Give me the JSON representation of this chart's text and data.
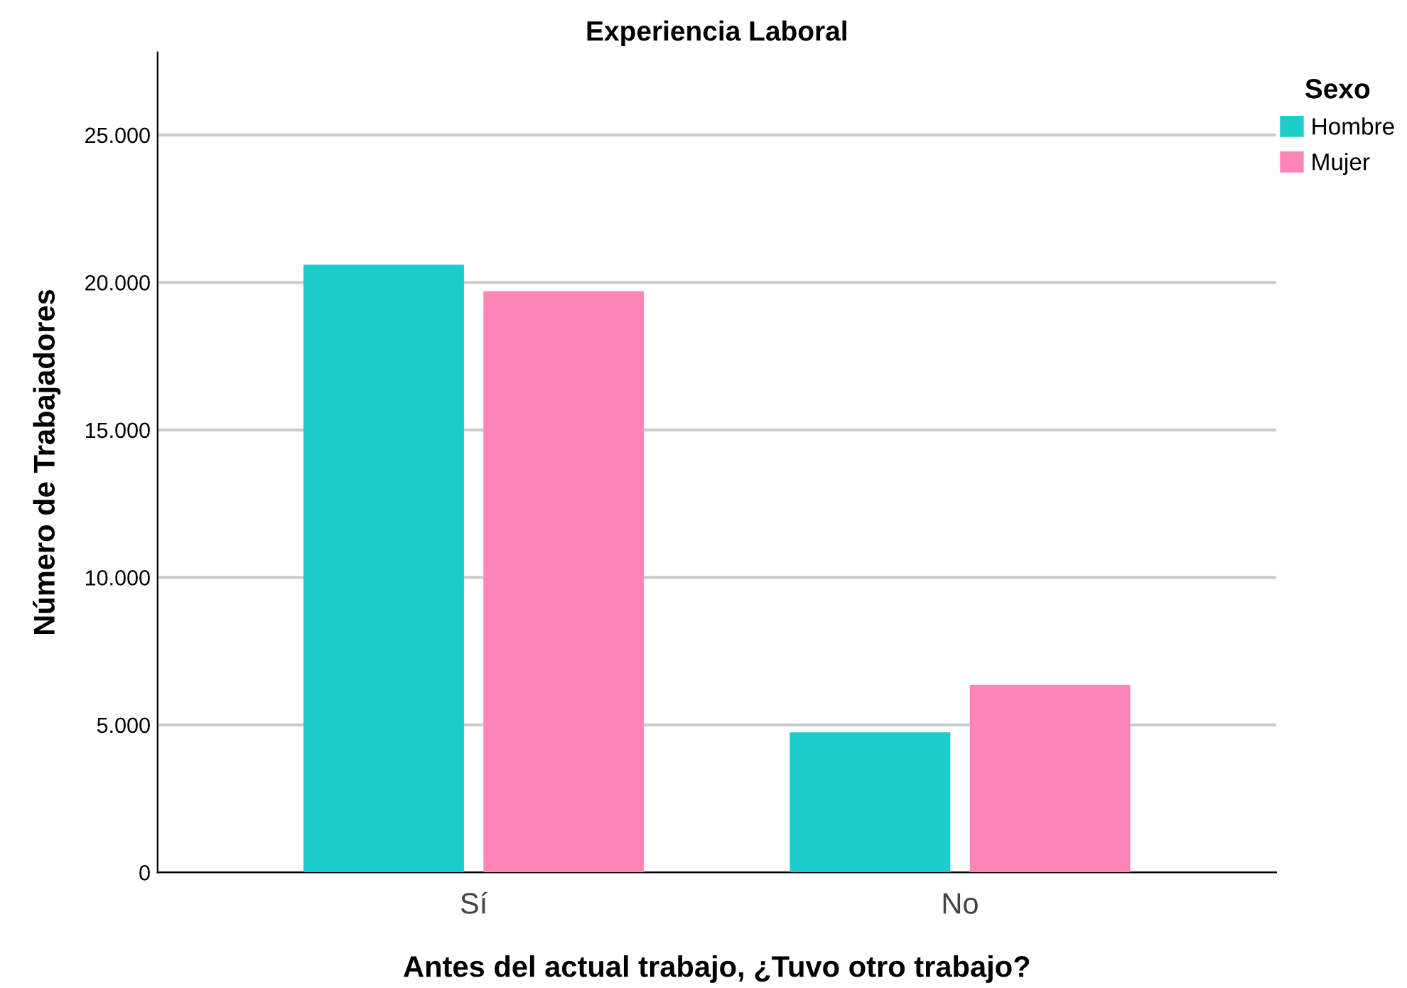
{
  "chart_data": {
    "type": "bar",
    "title": "Experiencia Laboral",
    "xlabel": "Antes del actual trabajo, ¿Tuvo otro trabajo?",
    "ylabel": "Número de Trabajadores",
    "legend_title": "Sexo",
    "categories": [
      "Sí",
      "No"
    ],
    "series": [
      {
        "name": "Hombre",
        "color": "#1ccdcc",
        "values": [
          20600,
          4750
        ]
      },
      {
        "name": "Mujer",
        "color": "#ff84b8",
        "values": [
          19700,
          6350
        ]
      }
    ],
    "ylim": [
      0,
      27800
    ],
    "yticks": [
      0,
      {
        "value": 5000,
        "label": "5.000"
      },
      {
        "value": 10000,
        "label": "10.000"
      },
      {
        "value": 15000,
        "label": "15.000"
      },
      {
        "value": 20000,
        "label": "20.000"
      },
      {
        "value": 25000,
        "label": "25.000"
      }
    ],
    "grid": "y",
    "legend": "top right"
  }
}
